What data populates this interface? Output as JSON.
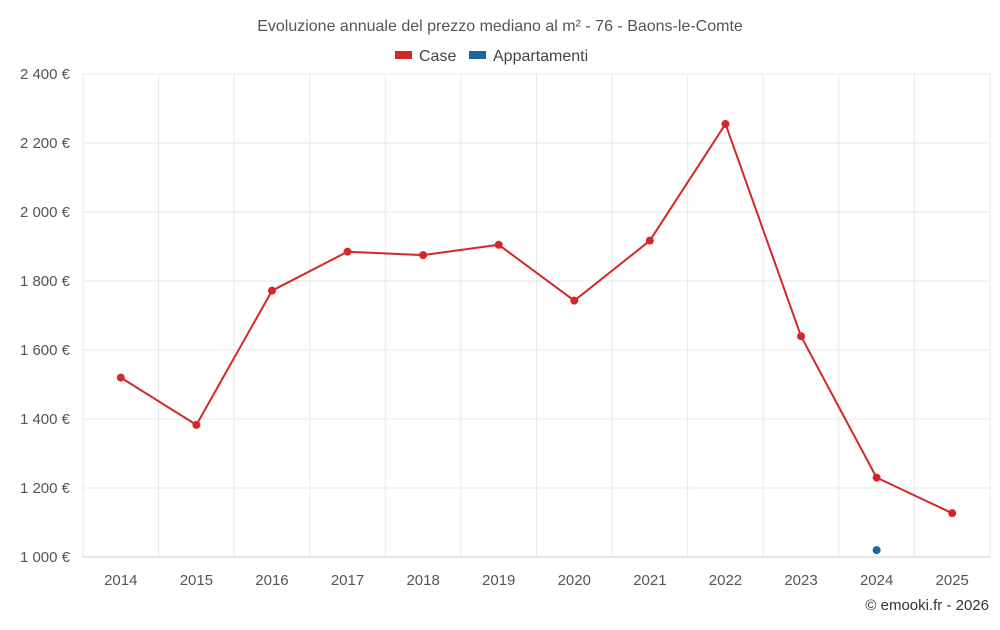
{
  "chart_data": {
    "type": "line",
    "title": "Evoluzione annuale del prezzo mediano al m² - 76 - Baons-le-Comte",
    "categories": [
      "2014",
      "2015",
      "2016",
      "2017",
      "2018",
      "2019",
      "2020",
      "2021",
      "2022",
      "2023",
      "2024",
      "2025"
    ],
    "ylim": [
      1000,
      2400
    ],
    "yticks": [
      1000,
      1200,
      1400,
      1600,
      1800,
      2000,
      2200,
      2400
    ],
    "ytick_labels": [
      "1 000 €",
      "1 200 €",
      "1 400 €",
      "1 600 €",
      "1 800 €",
      "2 000 €",
      "2 200 €",
      "2 400 €"
    ],
    "xlabel": "",
    "ylabel": "",
    "grid": true,
    "legend_position": "top-center",
    "series": [
      {
        "name": "Case",
        "color": "#d62728",
        "values": [
          1520,
          1383,
          1772,
          1885,
          1875,
          1905,
          1743,
          1917,
          2255,
          1640,
          1230,
          1127
        ]
      },
      {
        "name": "Appartamenti",
        "color": "#1f65a3",
        "values": [
          null,
          null,
          null,
          null,
          null,
          null,
          null,
          null,
          null,
          null,
          1020,
          null
        ]
      }
    ],
    "credit": "© emooki.fr - 2026"
  }
}
